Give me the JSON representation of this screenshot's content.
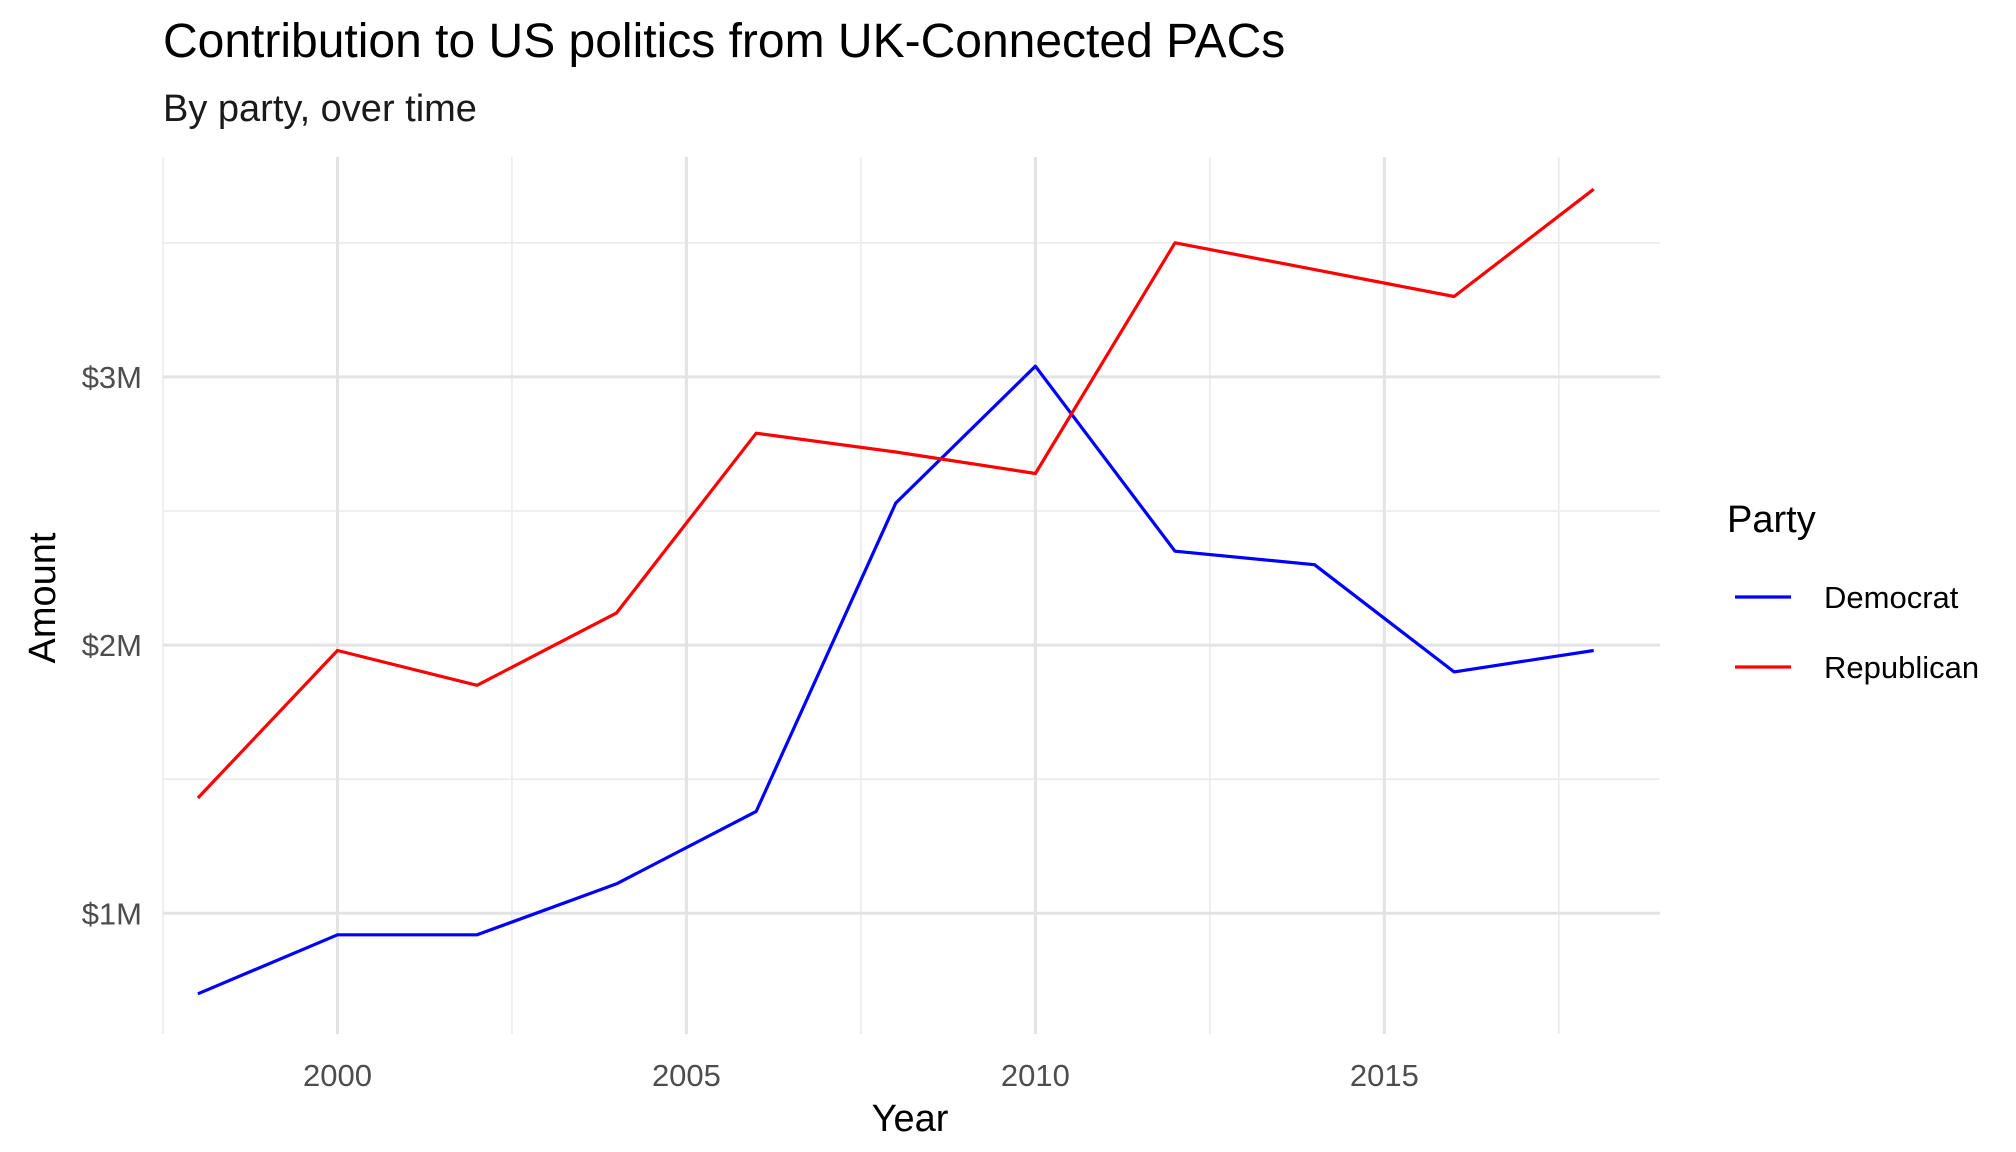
{
  "chart_data": {
    "type": "line",
    "title": "Contribution to US politics from UK-Connected PACs",
    "subtitle": "By party, over time",
    "xlabel": "Year",
    "ylabel": "Amount",
    "x": [
      1998,
      2000,
      2002,
      2004,
      2006,
      2008,
      2010,
      2012,
      2014,
      2016,
      2018
    ],
    "xlim": [
      1997.5,
      2018.95
    ],
    "ylim": [
      0.55,
      3.82
    ],
    "x_ticks": [
      2000,
      2005,
      2010,
      2015
    ],
    "x_tick_labels": [
      "2000",
      "2005",
      "2010",
      "2015"
    ],
    "y_ticks": [
      1,
      2,
      3
    ],
    "y_tick_labels": [
      "$1M",
      "$2M",
      "$3M"
    ],
    "y_unit": "$M",
    "grid": true,
    "legend": {
      "title": "Party",
      "placement": "right"
    },
    "series": [
      {
        "name": "Democrat",
        "color": "#0000ff",
        "values": [
          0.7,
          0.92,
          0.92,
          1.11,
          1.38,
          2.53,
          3.04,
          2.35,
          2.3,
          1.9,
          1.98
        ]
      },
      {
        "name": "Republican",
        "color": "#ff0000",
        "values": [
          1.43,
          1.98,
          1.85,
          2.12,
          2.79,
          2.72,
          2.64,
          3.5,
          3.4,
          3.3,
          3.7
        ]
      }
    ]
  }
}
